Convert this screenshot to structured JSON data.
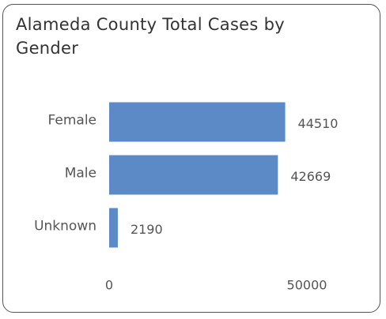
{
  "chart_data": {
    "type": "bar",
    "orientation": "horizontal",
    "title": "Alameda County Total Cases by Gender",
    "categories": [
      "Female",
      "Male",
      "Unknown"
    ],
    "values": [
      44510,
      42669,
      2190
    ],
    "color": "#5b8ac6",
    "xlim": [
      0,
      50000
    ],
    "xticks": [
      0,
      50000
    ],
    "grid": false
  }
}
